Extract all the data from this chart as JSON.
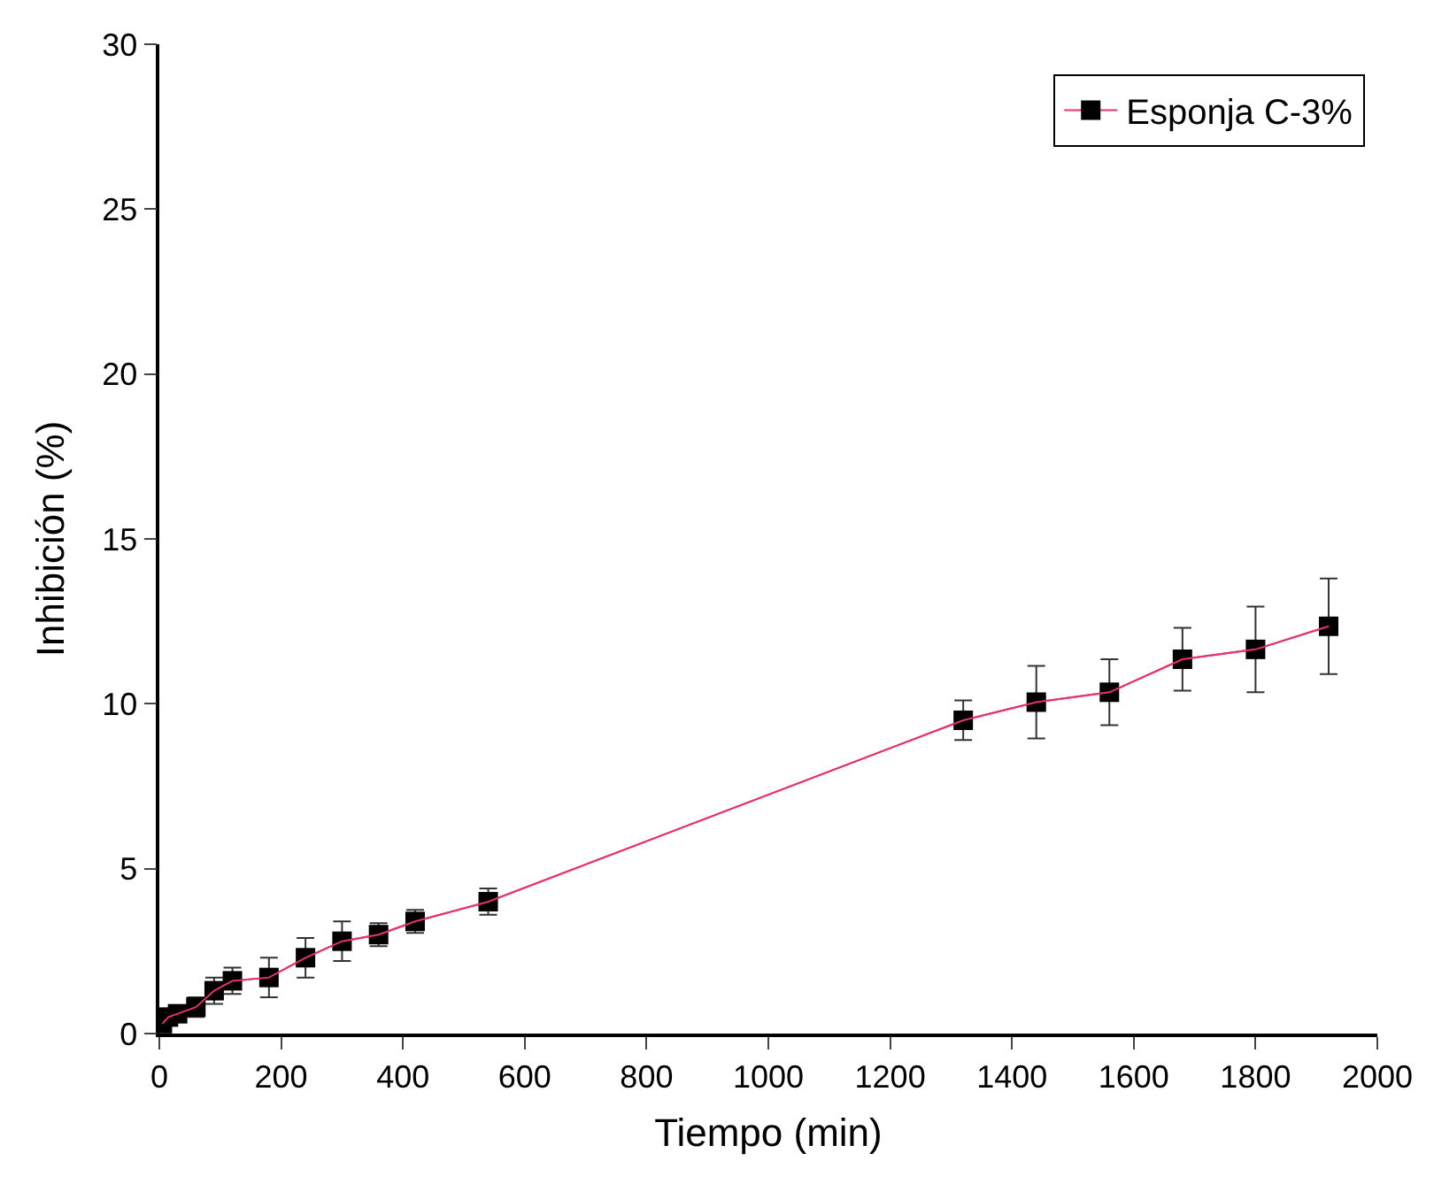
{
  "chart_data": {
    "type": "line",
    "xlabel": "Tiempo (min)",
    "ylabel": "Inhibición (%)",
    "xlim": [
      0,
      2000
    ],
    "xticks": [
      0,
      200,
      400,
      600,
      800,
      1000,
      1200,
      1400,
      1600,
      1800,
      2000
    ],
    "ylim": [
      0,
      30
    ],
    "yticks": [
      0,
      5,
      10,
      15,
      20,
      25,
      30
    ],
    "x": [
      5,
      15,
      30,
      60,
      90,
      120,
      180,
      240,
      300,
      360,
      420,
      540,
      1320,
      1440,
      1560,
      1680,
      1800,
      1920
    ],
    "series": [
      {
        "name": "Esponja C-3%",
        "color": "#e8336a",
        "values": [
          0.3,
          0.5,
          0.6,
          0.8,
          1.3,
          1.6,
          1.7,
          2.3,
          2.8,
          3.0,
          3.4,
          4.0,
          9.5,
          10.05,
          10.35,
          11.35,
          11.65,
          12.35
        ],
        "errors": [
          null,
          null,
          null,
          0.3,
          0.4,
          0.4,
          0.6,
          0.6,
          0.6,
          0.35,
          0.35,
          0.4,
          0.6,
          1.1,
          1.0,
          0.95,
          1.3,
          1.45
        ]
      }
    ],
    "marker": "square",
    "line_style": "solid",
    "legend": "top right"
  }
}
